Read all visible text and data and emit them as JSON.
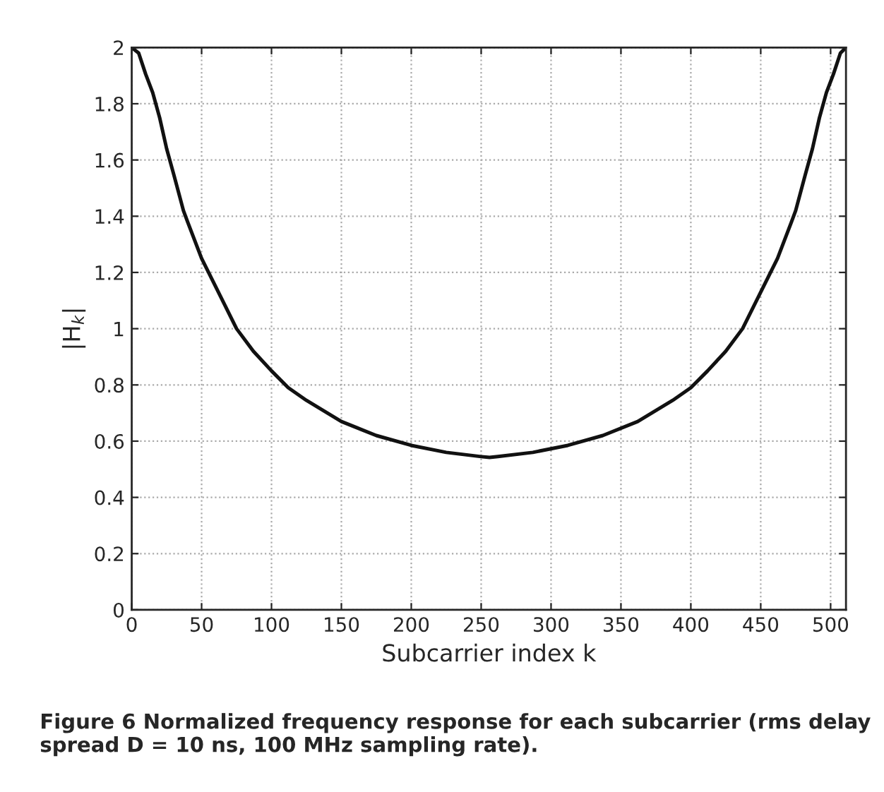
{
  "chart_data": {
    "type": "line",
    "xlabel": "Subcarrier index k",
    "ylabel": "|H$_{k}$|",
    "annotations": [
      "Figure 6 Normalized frequency response for each subcarrier (rms delay spread D = 10 ns, 100 MHz sampling rate)."
    ],
    "x": [
      0,
      5,
      10,
      15,
      20,
      25,
      30,
      37,
      40,
      50,
      60,
      75,
      87,
      100,
      112,
      125,
      150,
      175,
      200,
      225,
      250,
      256,
      262,
      287,
      312,
      337,
      362,
      387,
      400,
      412,
      425,
      437,
      452,
      462,
      472,
      475,
      482,
      487,
      492,
      497,
      502,
      507,
      511
    ],
    "series": [
      {
        "color": "#111111",
        "values": [
          2.0,
          1.98,
          1.905,
          1.84,
          1.75,
          1.64,
          1.55,
          1.42,
          1.38,
          1.25,
          1.15,
          1.0,
          0.92,
          0.85,
          0.79,
          0.745,
          0.67,
          0.62,
          0.585,
          0.56,
          0.545,
          0.542,
          0.545,
          0.56,
          0.585,
          0.62,
          0.67,
          0.745,
          0.79,
          0.85,
          0.92,
          1.0,
          1.15,
          1.25,
          1.38,
          1.42,
          1.55,
          1.64,
          1.75,
          1.84,
          1.905,
          1.98,
          2.0
        ]
      }
    ],
    "xlim": [
      0,
      511
    ],
    "ylim": [
      0,
      2
    ],
    "xticks": [
      0,
      50,
      100,
      150,
      200,
      250,
      300,
      350,
      400,
      450,
      500
    ],
    "yticks": [
      0,
      0.2,
      0.4,
      0.6,
      0.8,
      1,
      1.2,
      1.4,
      1.6,
      1.8,
      2
    ],
    "grid": true,
    "line_style": "solid",
    "marker": "none"
  }
}
